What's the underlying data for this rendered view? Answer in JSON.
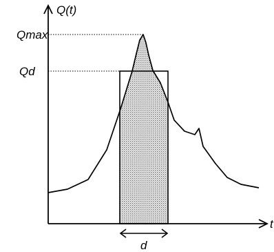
{
  "diagram": {
    "y_axis_label": "Q(t)",
    "x_axis_label": "t",
    "peak_label": "Qmax",
    "design_label": "Qd",
    "duration_label": "d"
  },
  "colors": {
    "stroke": "#000000",
    "shade_fill": "#c8c8c8",
    "background": "#ffffff"
  }
}
